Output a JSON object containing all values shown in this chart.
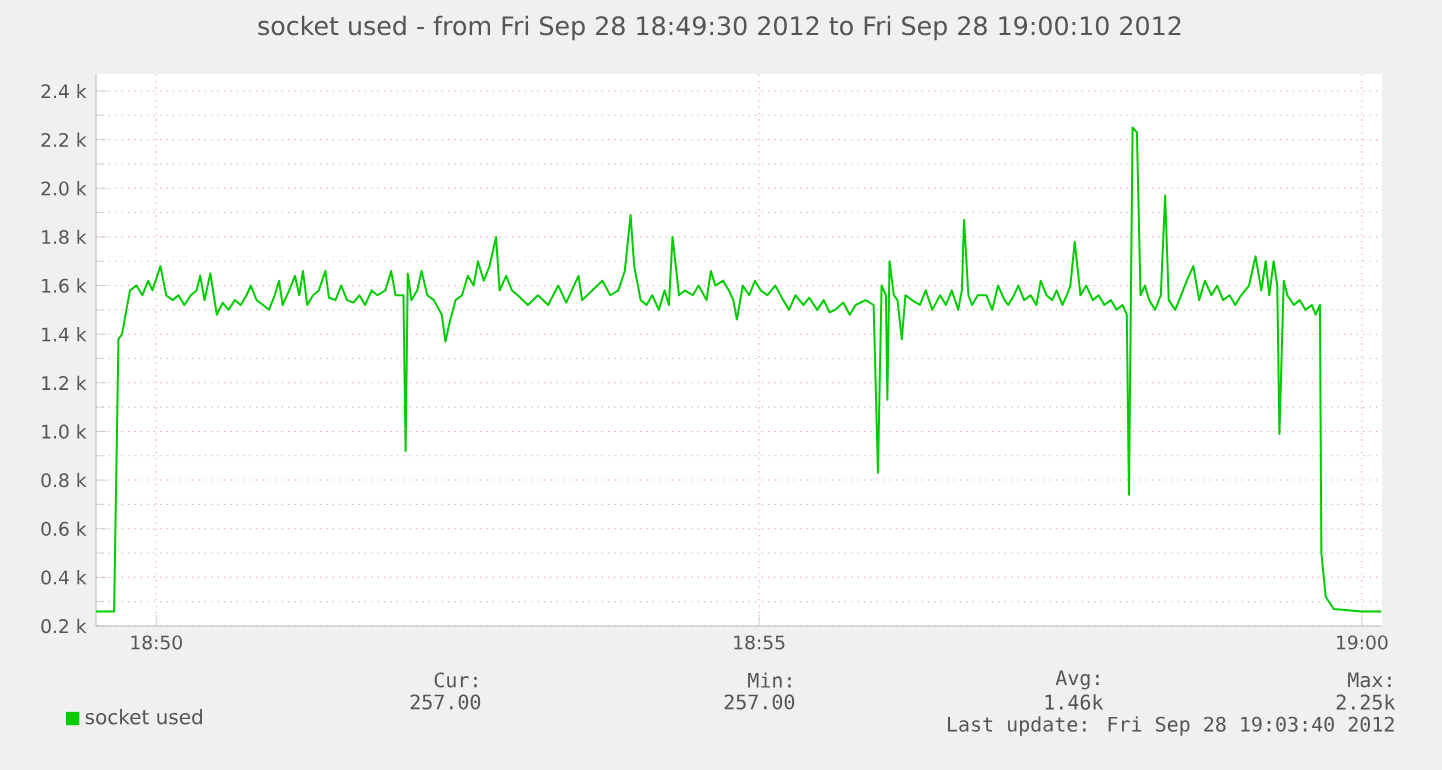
{
  "chart_data": {
    "type": "line",
    "title": "socket used - from Fri Sep 28 18:49:30 2012 to Fri Sep 28 19:00:10 2012",
    "xlim": [
      18.825,
      19.00278
    ],
    "ylim": [
      200,
      2470
    ],
    "xticks": [
      {
        "value": 18.83333,
        "label": "18:50"
      },
      {
        "value": 18.91667,
        "label": "18:55"
      },
      {
        "value": 19.0,
        "label": "19:00"
      }
    ],
    "yticks": [
      {
        "value": 200,
        "label": "0.2 k"
      },
      {
        "value": 400,
        "label": "0.4 k"
      },
      {
        "value": 600,
        "label": "0.6 k"
      },
      {
        "value": 800,
        "label": "0.8 k"
      },
      {
        "value": 1000,
        "label": "1.0 k"
      },
      {
        "value": 1200,
        "label": "1.2 k"
      },
      {
        "value": 1400,
        "label": "1.4 k"
      },
      {
        "value": 1600,
        "label": "1.6 k"
      },
      {
        "value": 1800,
        "label": "1.8 k"
      },
      {
        "value": 2000,
        "label": "2.0 k"
      },
      {
        "value": 2200,
        "label": "2.2 k"
      },
      {
        "value": 2400,
        "label": "2.4 k"
      }
    ],
    "grid": true,
    "legend": "bottom left",
    "annotations": [
      "Cur:",
      "257.00",
      "Min:",
      "257.00",
      "Avg:",
      "1.46k",
      "Max:",
      "2.25k",
      "Last update: Fri Sep 28 19:03:40 2012"
    ],
    "series": [
      {
        "name": "socket used",
        "color": "#00cc00",
        "x": [
          18.825,
          18.8275,
          18.8281,
          18.8286,
          18.8292,
          18.8297,
          18.8306,
          18.8314,
          18.8322,
          18.8328,
          18.8339,
          18.8347,
          18.8356,
          18.8364,
          18.8372,
          18.8381,
          18.8389,
          18.8394,
          18.84,
          18.8408,
          18.8417,
          18.8425,
          18.8433,
          18.8442,
          18.845,
          18.8458,
          18.8464,
          18.8472,
          18.8481,
          18.8489,
          18.8497,
          18.8503,
          18.8508,
          18.8517,
          18.8525,
          18.8531,
          18.8536,
          18.8542,
          18.855,
          18.8558,
          18.8567,
          18.8572,
          18.8581,
          18.8589,
          18.8597,
          18.8606,
          18.8614,
          18.8622,
          18.8631,
          18.8639,
          18.865,
          18.8658,
          18.8664,
          18.8675,
          18.8678,
          18.8681,
          18.8686,
          18.8694,
          18.87,
          18.8708,
          18.8717,
          18.8728,
          18.8733,
          18.8739,
          18.8747,
          18.8756,
          18.8764,
          18.8772,
          18.8778,
          18.8786,
          18.8794,
          18.8803,
          18.8808,
          18.8817,
          18.8825,
          18.8833,
          18.8847,
          18.8861,
          18.8875,
          18.8889,
          18.89,
          18.8917,
          18.8922,
          18.8936,
          18.895,
          18.8961,
          18.8972,
          18.8981,
          18.8989,
          18.8994,
          18.9003,
          18.9011,
          18.9019,
          18.9028,
          18.9036,
          18.9042,
          18.9047,
          18.9056,
          18.9064,
          18.9075,
          18.9083,
          18.9094,
          18.91,
          18.9106,
          18.9117,
          18.9125,
          18.9131,
          18.9136,
          18.9144,
          18.9153,
          18.9161,
          18.9169,
          18.9178,
          18.9189,
          18.92,
          18.9208,
          18.9217,
          18.9228,
          18.9236,
          18.9247,
          18.9256,
          18.9264,
          18.9272,
          18.9283,
          18.9292,
          18.93,
          18.9314,
          18.9325,
          18.9331,
          18.9336,
          18.9342,
          18.9344,
          18.9347,
          18.9353,
          18.9358,
          18.9364,
          18.9369,
          18.9378,
          18.9389,
          18.9397,
          18.9406,
          18.9417,
          18.9425,
          18.9433,
          18.9442,
          18.9447,
          18.945,
          18.9456,
          18.9461,
          18.9469,
          18.9481,
          18.9489,
          18.9497,
          18.9506,
          18.9511,
          18.9519,
          18.9525,
          18.9533,
          18.9542,
          18.955,
          18.9556,
          18.9564,
          18.9572,
          18.9578,
          18.9586,
          18.9592,
          18.9597,
          18.9603,
          18.9611,
          18.9619,
          18.9628,
          18.9636,
          18.9644,
          18.9653,
          18.9661,
          18.9669,
          18.9675,
          18.9678,
          18.9683,
          18.9689,
          18.9694,
          18.97,
          18.9706,
          18.9714,
          18.9722,
          18.9728,
          18.9733,
          18.9742,
          18.975,
          18.9758,
          18.9767,
          18.9775,
          18.9783,
          18.9792,
          18.98,
          18.9808,
          18.9817,
          18.9825,
          18.9833,
          18.9844,
          18.9853,
          18.9861,
          18.9867,
          18.9872,
          18.9878,
          18.9883,
          18.9886,
          18.9892,
          18.9897,
          18.9906,
          18.9914,
          18.9922,
          18.9931,
          18.9936,
          18.9942,
          18.9944,
          18.995,
          18.9961,
          19.0,
          19.0027
        ],
        "values": [
          260,
          260,
          1380,
          1400,
          1500,
          1580,
          1600,
          1560,
          1620,
          1580,
          1680,
          1560,
          1540,
          1560,
          1520,
          1560,
          1580,
          1640,
          1540,
          1650,
          1480,
          1530,
          1500,
          1540,
          1520,
          1560,
          1600,
          1540,
          1520,
          1500,
          1560,
          1620,
          1520,
          1580,
          1640,
          1560,
          1660,
          1520,
          1560,
          1580,
          1660,
          1550,
          1540,
          1600,
          1540,
          1530,
          1560,
          1520,
          1580,
          1560,
          1580,
          1660,
          1560,
          1560,
          920,
          1650,
          1540,
          1580,
          1660,
          1560,
          1540,
          1480,
          1370,
          1450,
          1540,
          1560,
          1640,
          1600,
          1700,
          1620,
          1680,
          1800,
          1580,
          1640,
          1580,
          1560,
          1520,
          1560,
          1520,
          1600,
          1530,
          1640,
          1540,
          1580,
          1620,
          1560,
          1580,
          1660,
          1890,
          1680,
          1540,
          1520,
          1560,
          1500,
          1580,
          1520,
          1800,
          1560,
          1580,
          1560,
          1600,
          1540,
          1660,
          1600,
          1620,
          1580,
          1540,
          1460,
          1600,
          1560,
          1620,
          1580,
          1560,
          1600,
          1540,
          1500,
          1560,
          1520,
          1550,
          1500,
          1540,
          1490,
          1500,
          1530,
          1480,
          1520,
          1540,
          1520,
          830,
          1600,
          1560,
          1130,
          1700,
          1560,
          1540,
          1380,
          1560,
          1540,
          1520,
          1580,
          1500,
          1560,
          1520,
          1580,
          1500,
          1580,
          1870,
          1560,
          1520,
          1560,
          1560,
          1500,
          1600,
          1540,
          1520,
          1560,
          1600,
          1540,
          1560,
          1520,
          1620,
          1560,
          1540,
          1580,
          1520,
          1560,
          1600,
          1780,
          1560,
          1600,
          1540,
          1560,
          1520,
          1540,
          1500,
          1520,
          1480,
          740,
          2250,
          2230,
          1560,
          1600,
          1540,
          1500,
          1560,
          1970,
          1540,
          1500,
          1560,
          1620,
          1680,
          1540,
          1620,
          1560,
          1600,
          1540,
          1560,
          1520,
          1560,
          1600,
          1720,
          1580,
          1700,
          1560,
          1700,
          1600,
          990,
          1620,
          1560,
          1520,
          1540,
          1500,
          1520,
          1480,
          1520,
          500,
          320,
          270,
          260,
          260
        ]
      }
    ]
  }
}
